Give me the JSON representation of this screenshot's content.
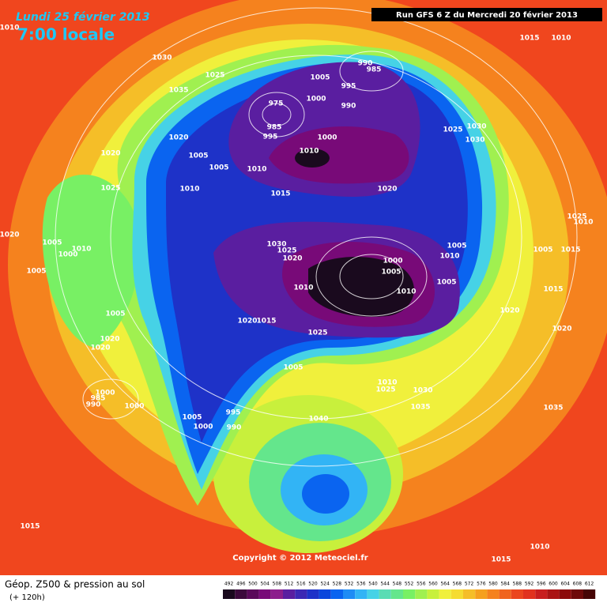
{
  "header": {
    "date": "Lundi 25 février 2013",
    "time": "7:00 locale",
    "run": "Run GFS 6 Z du Mercredi 20 février 2013"
  },
  "copyright": "Copyright © 2012 Meteociel.fr",
  "footer": {
    "title": "Géop. Z500 & pression au sol",
    "subtitle": "(+ 120h)"
  },
  "pressure_labels": [
    "1010",
    "1030",
    "1025",
    "1035",
    "1005",
    "990",
    "985",
    "995",
    "1000",
    "990",
    "975",
    "985",
    "995",
    "1000",
    "1010",
    "1020",
    "1005",
    "1005",
    "1010",
    "1010",
    "1020",
    "1025",
    "1015",
    "1020",
    "1025",
    "1030",
    "1030",
    "1015",
    "1010",
    "1030",
    "1025",
    "1020",
    "1000",
    "1005",
    "1010",
    "1005",
    "1010",
    "1005",
    "1020",
    "1025",
    "1010",
    "1005",
    "1015",
    "1015",
    "1020",
    "1020",
    "1005",
    "1010",
    "1000",
    "1005",
    "1005",
    "1020",
    "1020",
    "1020",
    "1015",
    "1025",
    "1005",
    "1000",
    "985",
    "990",
    "1000",
    "1005",
    "995",
    "1000",
    "990",
    "1010",
    "1025",
    "1030",
    "1035",
    "1040",
    "1035",
    "1015",
    "1010",
    "1015",
    "1010"
  ],
  "colorbar": {
    "ticks": [
      492,
      496,
      500,
      504,
      508,
      512,
      516,
      520,
      524,
      528,
      532,
      536,
      540,
      544,
      548,
      552,
      556,
      560,
      564,
      568,
      572,
      576,
      580,
      584,
      588,
      592,
      596,
      600,
      604,
      608,
      612
    ],
    "colors": [
      "#1a0a1e",
      "#3c0a3c",
      "#5a0a5a",
      "#780a78",
      "#8c1e8c",
      "#5a1ea0",
      "#3c28b4",
      "#1e32c8",
      "#0a46dc",
      "#0a64f0",
      "#1e8cf5",
      "#32b4f5",
      "#46d2e6",
      "#5adcb4",
      "#64e68c",
      "#78f064",
      "#a0f050",
      "#c8f03c",
      "#f0f03c",
      "#f5dc32",
      "#f5be28",
      "#f5a01e",
      "#f5821e",
      "#f0641e",
      "#eb461e",
      "#e1321e",
      "#c81e1e",
      "#aa1414",
      "#8c0a0a",
      "#6e0a0a",
      "#460505"
    ]
  }
}
